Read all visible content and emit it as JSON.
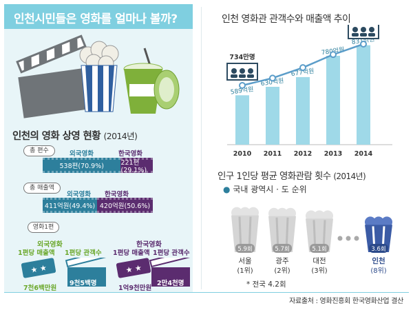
{
  "title": "인천시민들은 영화를 얼마나 볼까?",
  "trend": {
    "title": "인천 영화관 관객수와 매출액 추이",
    "callout_first": "734만명",
    "callout_last": "1,050만명"
  },
  "screening": {
    "title": "인천의 영화 상영 현황",
    "title_year": "(2014년)",
    "count": {
      "pill": "총 편수",
      "foreign_label": "외국영화",
      "korean_label": "한국영화",
      "foreign_value": "538편(70.9%)",
      "korean_value": "221편(29.1%)",
      "foreign_share": 70.9
    },
    "sales": {
      "pill": "총 매출액",
      "foreign_label": "외국영화",
      "korean_label": "한국영화",
      "foreign_value": "411억원(49.4%)",
      "korean_value": "420억원(50.6%)",
      "foreign_share": 49.4
    },
    "per_film": {
      "pill": "영화1편",
      "foreign": {
        "name": "외국영화",
        "sales_label": "1편당 매출액",
        "aud_label": "1편당 관객수",
        "sales_value": "7천6백만원",
        "aud_value": "9천5백명"
      },
      "korean": {
        "name": "한국영화",
        "sales_label": "1편당 매출액",
        "aud_label": "1편당 관객수",
        "sales_value": "1억9천만원",
        "aud_value": "2만4천명"
      }
    }
  },
  "per_capita": {
    "title": "인구 1인당 평균 영화관람 횟수",
    "title_year": "(2014년)",
    "subtitle": "국내 광역시 · 도 순위",
    "national": "* 전국 4.2회"
  },
  "source": "자료출처 : 영화진흥회  한국영화산업 결산",
  "chart_data": [
    {
      "type": "bar",
      "title": "인천 영화관 관객수와 매출액 추이",
      "categories": [
        "2010",
        "2011",
        "2012",
        "2013",
        "2014"
      ],
      "series": [
        {
          "values": [
            589,
            630,
            677,
            780,
            831
          ],
          "labels": [
            "589억원",
            "630억원",
            "677억원",
            "780억원",
            "831억원"
          ]
        },
        {
          "values": [
            734,
            790,
            870,
            970,
            1050
          ],
          "labels": [
            "734만명",
            "",
            "",
            "",
            "1,050만명"
          ]
        }
      ],
      "colors": {
        "bar": "#9fd9e8",
        "line": "#5b9dc9"
      }
    },
    {
      "type": "bar",
      "title": "인구 1인당 평균 영화관람 횟수",
      "categories": [
        "서울",
        "광주",
        "대전",
        "인천"
      ],
      "values": [
        5.9,
        5.7,
        5.1,
        3.6
      ],
      "value_labels": [
        "5.9회",
        "5.7회",
        "5.1회",
        "3.6회"
      ],
      "ranks": [
        "(1위)",
        "(2위)",
        "(3위)",
        "(8위)"
      ]
    }
  ]
}
